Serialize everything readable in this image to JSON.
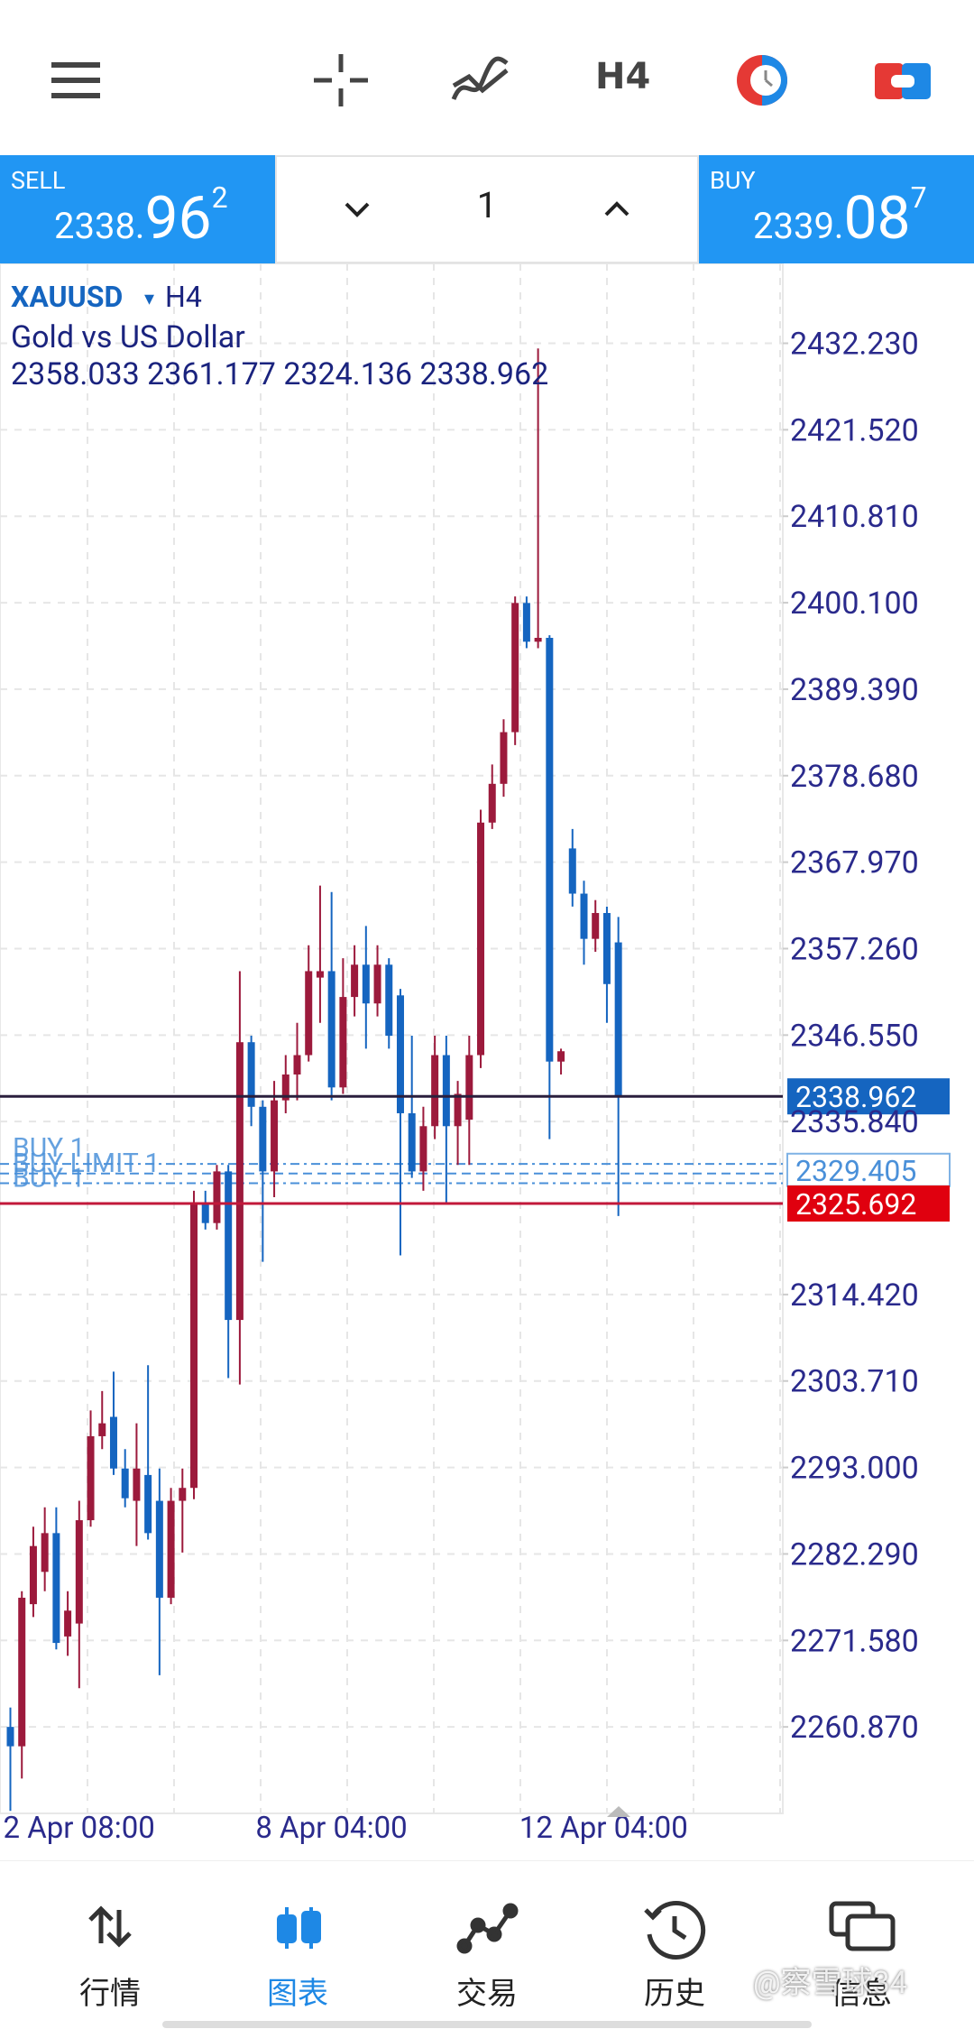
{
  "toolbar": {
    "timeframe": "H4"
  },
  "trade_panel": {
    "sell": {
      "label": "SELL",
      "price_main": "2338.",
      "price_big": "96",
      "price_sup": "2"
    },
    "volume": "1",
    "buy": {
      "label": "BUY",
      "price_main": "2339.",
      "price_big": "08",
      "price_sup": "7"
    }
  },
  "chart_info": {
    "symbol": "XAUUSD",
    "dropdown": "▾",
    "timeframe": "H4",
    "description": "Gold vs US Dollar",
    "ohlc": "2358.033 2361.177 2324.136 2338.962"
  },
  "chart_data": {
    "type": "candlestick",
    "up_color": "#9c1a3c",
    "down_color": "#1565c0",
    "grid": true,
    "ylim": [
      2250.16,
      2442.12
    ],
    "yticks": [
      {
        "value": 2432.23,
        "label": "2432.230"
      },
      {
        "value": 2421.52,
        "label": "2421.520"
      },
      {
        "value": 2410.81,
        "label": "2410.810"
      },
      {
        "value": 2400.1,
        "label": "2400.100"
      },
      {
        "value": 2389.39,
        "label": "2389.390"
      },
      {
        "value": 2378.68,
        "label": "2378.680"
      },
      {
        "value": 2367.97,
        "label": "2367.970"
      },
      {
        "value": 2357.26,
        "label": "2357.260"
      },
      {
        "value": 2346.55,
        "label": "2346.550"
      },
      {
        "value": 2335.84,
        "label": "2335.840"
      },
      {
        "value": 2314.42,
        "label": "2314.420"
      },
      {
        "value": 2303.71,
        "label": "2303.710"
      },
      {
        "value": 2293,
        "label": "2293.000"
      },
      {
        "value": 2282.29,
        "label": "2282.290"
      },
      {
        "value": 2271.58,
        "label": "2271.580"
      },
      {
        "value": 2260.87,
        "label": "2260.870"
      }
    ],
    "categories": [
      "2 Apr 08:00",
      null,
      null,
      null,
      null,
      null,
      null,
      null,
      null,
      null,
      null,
      null,
      null,
      null,
      null,
      null,
      null,
      null,
      null,
      null,
      null,
      null,
      "8 Apr 04:00",
      null,
      null,
      null,
      null,
      null,
      null,
      null,
      null,
      null,
      null,
      null,
      null,
      null,
      null,
      null,
      null,
      null,
      null,
      null,
      null,
      null,
      null,
      "12 Apr 04:00",
      null,
      null,
      null,
      null,
      null,
      null,
      null,
      null
    ],
    "open": [
      2260.87,
      2258.47,
      2276.07,
      2280.07,
      2284.87,
      2272.07,
      2273.67,
      2286.47,
      2296.87,
      2299.27,
      2292.87,
      2288.87,
      2292.07,
      2288.87,
      2276.87,
      2288.87,
      2290.47,
      2325.67,
      2323.27,
      2329.67,
      2311.27,
      2345.67,
      2337.67,
      2329.67,
      2338.47,
      2341.67,
      2344.07,
      2353.67,
      2354.47,
      2340.07,
      2351.27,
      2355.27,
      2350.47,
      2355.27,
      2351.47,
      2336.87,
      2329.67,
      2335.27,
      2344.07,
      2335.27,
      2336.07,
      2344.07,
      2372.87,
      2377.67,
      2384.07,
      2400.07,
      2395.27,
      2395.75,
      2343.27,
      2369.67,
      2364.07,
      2358.47,
      2361.67,
      2358.033
    ],
    "high": [
      2263.27,
      2277.67,
      2285.67,
      2288.07,
      2288.07,
      2277.67,
      2288.87,
      2300.07,
      2302.47,
      2304.87,
      2295.27,
      2298.47,
      2305.67,
      2292.87,
      2290.47,
      2292.87,
      2327.27,
      2327.27,
      2330.47,
      2330.47,
      2354.47,
      2346.47,
      2338.47,
      2340.87,
      2344.07,
      2348.07,
      2357.67,
      2365.07,
      2364.27,
      2356.07,
      2357.67,
      2360.07,
      2357.67,
      2356.07,
      2352.27,
      2346.47,
      2337.67,
      2346.47,
      2346.47,
      2340.87,
      2346.47,
      2374.47,
      2380.07,
      2385.67,
      2400.87,
      2400.87,
      2431.59,
      2396.07,
      2344.87,
      2372.07,
      2365.67,
      2363.27,
      2362.47,
      2361.177
    ],
    "low": [
      2250.47,
      2254.47,
      2274.47,
      2277.67,
      2270.47,
      2269.67,
      2265.67,
      2285.67,
      2295.27,
      2292.07,
      2288.07,
      2283.27,
      2284.07,
      2267.27,
      2276.07,
      2282.47,
      2289.07,
      2322.47,
      2322.47,
      2304.07,
      2303.27,
      2335.27,
      2318.47,
      2326.47,
      2336.87,
      2338.47,
      2343.27,
      2348.07,
      2338.47,
      2339.27,
      2348.87,
      2344.87,
      2348.87,
      2344.87,
      2319.27,
      2328.87,
      2327.27,
      2333.67,
      2325.67,
      2330.47,
      2330.47,
      2342.47,
      2372.07,
      2376.07,
      2382.47,
      2394.47,
      2394.47,
      2333.67,
      2341.67,
      2362.47,
      2355.27,
      2356.87,
      2348.07,
      2324.136
    ],
    "close": [
      2258.47,
      2276.87,
      2283.27,
      2284.87,
      2271.27,
      2275.27,
      2286.47,
      2296.87,
      2298.47,
      2292.87,
      2289.19,
      2292.87,
      2284.87,
      2276.87,
      2288.87,
      2290.47,
      2325.67,
      2323.27,
      2329.67,
      2311.27,
      2345.67,
      2337.67,
      2329.67,
      2338.47,
      2341.67,
      2344.07,
      2354.47,
      2354.47,
      2340.07,
      2351.27,
      2355.27,
      2350.47,
      2355.27,
      2346.47,
      2336.87,
      2329.67,
      2335.27,
      2344.07,
      2335.27,
      2339.27,
      2344.07,
      2372.87,
      2377.67,
      2384.07,
      2400.07,
      2395.27,
      2395.75,
      2343.27,
      2344.55,
      2364.07,
      2358.47,
      2361.67,
      2352.87,
      2338.962
    ],
    "orders": [
      {
        "label": "BUY 1",
        "price": 2330.6
      },
      {
        "label": "BUY LIMIT 1",
        "price": 2329.405
      },
      {
        "label": "BUY 1",
        "price": 2328.2
      }
    ],
    "price_lines": [
      {
        "value": 2338.962,
        "color": "#2a1f3d",
        "label_color": "#1565c0"
      },
      {
        "value": 2325.692,
        "color": "#c2183a",
        "label_color": "#e0000f"
      }
    ]
  },
  "bottom_nav": {
    "items": [
      {
        "label": "行情",
        "active": false
      },
      {
        "label": "图表",
        "active": true
      },
      {
        "label": "交易",
        "active": false
      },
      {
        "label": "历史",
        "active": false
      },
      {
        "label": "信息",
        "active": false
      }
    ],
    "watermark": "@察雪球34"
  }
}
